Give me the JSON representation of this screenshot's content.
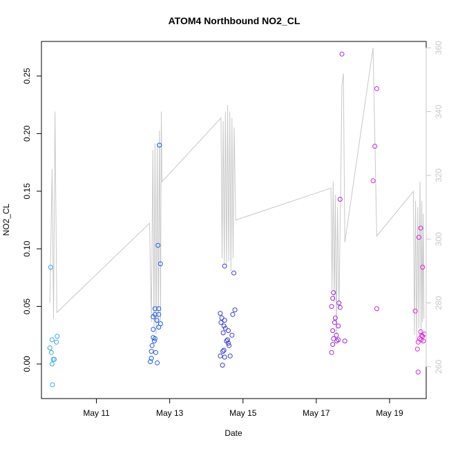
{
  "chart_data": {
    "type": "scatter",
    "title": "ATOM4 Northbound NO2_CL",
    "xlabel": "Date",
    "ylabel": "NO2_CL",
    "x_ticks": [
      "May 11",
      "May 13",
      "May 15",
      "May 17",
      "May 19"
    ],
    "x_tick_days": [
      11,
      13,
      15,
      17,
      19
    ],
    "xlim_days": [
      9.5,
      20.0
    ],
    "ylim": [
      -0.03,
      0.28
    ],
    "y_ticks": [
      0.0,
      0.05,
      0.1,
      0.15,
      0.2,
      0.25
    ],
    "y_tick_labels": [
      "0.00",
      "0.05",
      "0.10",
      "0.15",
      "0.20",
      "0.25"
    ],
    "y2_lim": [
      250,
      362
    ],
    "y2_ticks": [
      260,
      280,
      300,
      320,
      340,
      360
    ],
    "colors": {
      "line": "#c8c8c8",
      "frame": "#000000",
      "right_axis": "#c8c8c8"
    },
    "scatter_series": [
      {
        "color": "#36a8e8",
        "points": [
          [
            9.75,
            0.084
          ],
          [
            9.73,
            0.014
          ],
          [
            9.79,
            0.021
          ],
          [
            9.77,
            0.01
          ],
          [
            9.82,
            0.004
          ],
          [
            9.85,
            0.004
          ],
          [
            9.79,
            0.0
          ],
          [
            9.93,
            0.024
          ],
          [
            9.91,
            0.019
          ],
          [
            9.8,
            -0.018
          ]
        ]
      },
      {
        "color": "#1a5ce8",
        "points": [
          [
            12.72,
            0.19
          ],
          [
            12.68,
            0.103
          ],
          [
            12.75,
            0.087
          ],
          [
            12.6,
            0.048
          ],
          [
            12.7,
            0.048
          ],
          [
            12.6,
            0.043
          ],
          [
            12.65,
            0.038
          ],
          [
            12.7,
            0.043
          ],
          [
            12.55,
            0.041
          ],
          [
            12.75,
            0.035
          ],
          [
            12.7,
            0.032
          ],
          [
            12.55,
            0.03
          ],
          [
            12.6,
            0.022
          ],
          [
            12.55,
            0.023
          ],
          [
            12.58,
            0.02
          ],
          [
            12.52,
            0.016
          ],
          [
            12.5,
            0.011
          ],
          [
            12.62,
            0.01
          ],
          [
            12.5,
            0.005
          ],
          [
            12.47,
            0.002
          ],
          [
            12.66,
            0.001
          ]
        ]
      },
      {
        "color": "#3a3ad8",
        "points": [
          [
            14.5,
            0.085
          ],
          [
            14.75,
            0.079
          ],
          [
            14.78,
            0.047
          ],
          [
            14.72,
            0.043
          ],
          [
            14.38,
            0.044
          ],
          [
            14.42,
            0.04
          ],
          [
            14.5,
            0.038
          ],
          [
            14.4,
            0.036
          ],
          [
            14.48,
            0.033
          ],
          [
            14.52,
            0.031
          ],
          [
            14.6,
            0.029
          ],
          [
            14.46,
            0.027
          ],
          [
            14.7,
            0.025
          ],
          [
            14.58,
            0.021
          ],
          [
            14.6,
            0.018
          ],
          [
            14.62,
            0.016
          ],
          [
            14.55,
            0.02
          ],
          [
            14.48,
            0.012
          ],
          [
            14.45,
            0.011
          ],
          [
            14.38,
            0.007
          ],
          [
            14.5,
            0.006
          ],
          [
            14.65,
            0.007
          ],
          [
            14.44,
            -0.001
          ]
        ]
      },
      {
        "color": "#9a2ae0",
        "points": [
          [
            17.7,
            0.269
          ],
          [
            17.65,
            0.143
          ],
          [
            17.47,
            0.062
          ],
          [
            17.45,
            0.057
          ],
          [
            17.62,
            0.053
          ],
          [
            17.65,
            0.049
          ],
          [
            17.42,
            0.05
          ],
          [
            17.52,
            0.04
          ],
          [
            17.5,
            0.036
          ],
          [
            17.6,
            0.033
          ],
          [
            17.45,
            0.029
          ],
          [
            17.55,
            0.025
          ],
          [
            17.47,
            0.022
          ],
          [
            17.56,
            0.02
          ],
          [
            17.78,
            0.02
          ],
          [
            17.6,
            0.021
          ],
          [
            17.45,
            0.017
          ],
          [
            17.42,
            0.01
          ]
        ]
      },
      {
        "color": "#c024e0",
        "points": [
          [
            18.65,
            0.239
          ],
          [
            18.6,
            0.189
          ],
          [
            18.55,
            0.159
          ],
          [
            18.65,
            0.048
          ]
        ]
      },
      {
        "color": "#e020d8",
        "points": [
          [
            19.85,
            0.118
          ],
          [
            19.8,
            0.11
          ],
          [
            19.9,
            0.084
          ],
          [
            19.7,
            0.046
          ],
          [
            19.85,
            0.028
          ],
          [
            19.95,
            0.026
          ],
          [
            19.88,
            0.025
          ],
          [
            19.9,
            0.024
          ],
          [
            19.82,
            0.022
          ],
          [
            19.78,
            0.019
          ],
          [
            19.92,
            0.02
          ],
          [
            19.86,
            0.021
          ],
          [
            19.76,
            0.013
          ],
          [
            19.78,
            -0.007
          ]
        ]
      }
    ],
    "line_series": {
      "color": "#c8c8c8",
      "axis": "right",
      "points": [
        [
          9.73,
          280
        ],
        [
          9.79,
          322
        ],
        [
          9.83,
          275
        ],
        [
          9.87,
          340
        ],
        [
          9.92,
          277
        ],
        [
          12.45,
          305
        ],
        [
          12.5,
          274
        ],
        [
          12.54,
          328
        ],
        [
          12.57,
          272
        ],
        [
          12.6,
          330
        ],
        [
          12.63,
          270
        ],
        [
          12.66,
          330
        ],
        [
          12.69,
          272
        ],
        [
          12.72,
          334
        ],
        [
          12.75,
          274
        ],
        [
          12.77,
          340
        ],
        [
          12.79,
          318
        ],
        [
          14.4,
          338
        ],
        [
          14.43,
          294
        ],
        [
          14.46,
          337
        ],
        [
          14.49,
          292
        ],
        [
          14.52,
          340
        ],
        [
          14.55,
          292
        ],
        [
          14.58,
          342
        ],
        [
          14.61,
          293
        ],
        [
          14.64,
          340
        ],
        [
          14.67,
          290
        ],
        [
          14.7,
          338
        ],
        [
          14.73,
          294
        ],
        [
          14.76,
          335
        ],
        [
          14.8,
          306
        ],
        [
          17.4,
          316
        ],
        [
          17.43,
          284
        ],
        [
          17.46,
          318
        ],
        [
          17.49,
          280
        ],
        [
          17.52,
          314
        ],
        [
          17.55,
          270
        ],
        [
          17.58,
          310
        ],
        [
          17.62,
          278
        ],
        [
          17.67,
          320
        ],
        [
          17.7,
          348
        ],
        [
          17.74,
          352
        ],
        [
          17.78,
          299
        ],
        [
          18.55,
          360
        ],
        [
          18.65,
          301
        ],
        [
          19.65,
          315
        ],
        [
          19.68,
          270
        ],
        [
          19.71,
          312
        ],
        [
          19.74,
          268
        ],
        [
          19.77,
          310
        ],
        [
          19.8,
          272
        ],
        [
          19.83,
          318
        ],
        [
          19.86,
          270
        ],
        [
          19.88,
          312
        ],
        [
          19.9,
          274
        ],
        [
          19.92,
          308
        ],
        [
          19.94,
          275
        ]
      ]
    }
  }
}
